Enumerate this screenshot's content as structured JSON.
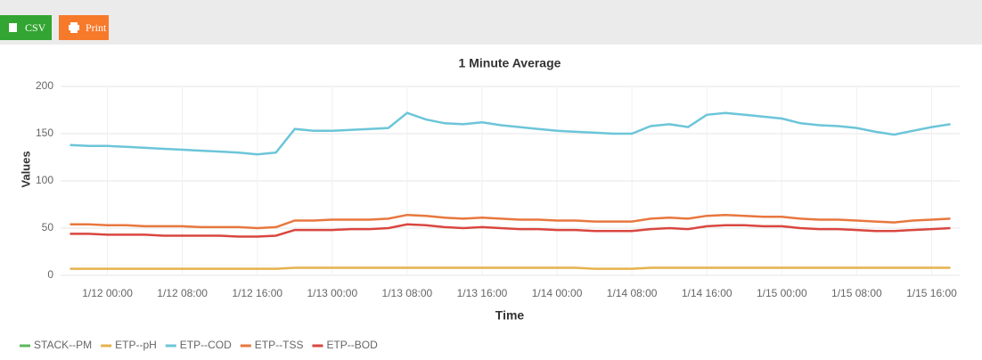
{
  "buttons": {
    "csv": "CSV",
    "print": "Print"
  },
  "chart_data": {
    "type": "line",
    "title": "1 Minute Average",
    "xlabel": "Time",
    "ylabel": "Values",
    "x": [
      "1/11 20:00",
      "1/11 22:00",
      "1/12 00:00",
      "1/12 02:00",
      "1/12 04:00",
      "1/12 06:00",
      "1/12 08:00",
      "1/12 10:00",
      "1/12 12:00",
      "1/12 14:00",
      "1/12 16:00",
      "1/12 18:00",
      "1/12 20:00",
      "1/12 22:00",
      "1/13 00:00",
      "1/13 02:00",
      "1/13 04:00",
      "1/13 06:00",
      "1/13 08:00",
      "1/13 10:00",
      "1/13 12:00",
      "1/13 14:00",
      "1/13 16:00",
      "1/13 18:00",
      "1/13 20:00",
      "1/13 22:00",
      "1/14 00:00",
      "1/14 02:00",
      "1/14 04:00",
      "1/14 06:00",
      "1/14 08:00",
      "1/14 10:00",
      "1/14 12:00",
      "1/14 14:00",
      "1/14 16:00",
      "1/14 18:00",
      "1/14 20:00",
      "1/14 22:00",
      "1/15 00:00",
      "1/15 02:00",
      "1/15 04:00",
      "1/15 06:00",
      "1/15 08:00",
      "1/15 10:00",
      "1/15 12:00",
      "1/15 14:00",
      "1/15 16:00",
      "1/15 18:00"
    ],
    "series": [
      {
        "name": "STACK--PM",
        "color": "#5cb85c",
        "values": [
          null,
          null,
          null,
          null,
          null,
          null,
          null,
          null,
          null,
          null,
          null,
          null,
          null,
          null,
          null,
          null,
          null,
          null,
          null,
          null,
          null,
          null,
          null,
          null,
          null,
          null,
          null,
          null,
          null,
          null,
          null,
          null,
          null,
          null,
          null,
          null,
          null,
          null,
          null,
          null,
          null,
          null,
          null,
          null,
          null,
          null,
          null,
          null
        ]
      },
      {
        "name": "ETP--pH",
        "color": "#e6b24c",
        "values": [
          7,
          7,
          7,
          7,
          7,
          7,
          7,
          7,
          7,
          7,
          7,
          7,
          8,
          8,
          8,
          8,
          8,
          8,
          8,
          8,
          8,
          8,
          8,
          8,
          8,
          8,
          8,
          8,
          7,
          7,
          7,
          8,
          8,
          8,
          8,
          8,
          8,
          8,
          8,
          8,
          8,
          8,
          8,
          8,
          8,
          8,
          8,
          8
        ]
      },
      {
        "name": "ETP--COD",
        "color": "#6cc5d9",
        "values": [
          138,
          137,
          137,
          136,
          135,
          134,
          133,
          132,
          131,
          130,
          128,
          130,
          155,
          153,
          153,
          154,
          155,
          156,
          172,
          165,
          161,
          160,
          162,
          159,
          157,
          155,
          153,
          152,
          151,
          150,
          150,
          158,
          160,
          157,
          170,
          172,
          170,
          168,
          166,
          161,
          159,
          158,
          156,
          152,
          149,
          153,
          157,
          160
        ]
      },
      {
        "name": "ETP--TSS",
        "color": "#e8773e",
        "values": [
          54,
          54,
          53,
          53,
          52,
          52,
          52,
          51,
          51,
          51,
          50,
          51,
          58,
          58,
          59,
          59,
          59,
          60,
          64,
          63,
          61,
          60,
          61,
          60,
          59,
          59,
          58,
          58,
          57,
          57,
          57,
          60,
          61,
          60,
          63,
          64,
          63,
          62,
          62,
          60,
          59,
          59,
          58,
          57,
          56,
          58,
          59,
          60
        ]
      },
      {
        "name": "ETP--BOD",
        "color": "#d9463f",
        "values": [
          44,
          44,
          43,
          43,
          43,
          42,
          42,
          42,
          42,
          41,
          41,
          42,
          48,
          48,
          48,
          49,
          49,
          50,
          54,
          53,
          51,
          50,
          51,
          50,
          49,
          49,
          48,
          48,
          47,
          47,
          47,
          49,
          50,
          49,
          52,
          53,
          53,
          52,
          52,
          50,
          49,
          49,
          48,
          47,
          47,
          48,
          49,
          50
        ]
      }
    ],
    "xlim": [
      "1/11 19:00",
      "1/15 19:00"
    ],
    "xticks": [
      "1/12 00:00",
      "1/12 08:00",
      "1/12 16:00",
      "1/13 00:00",
      "1/13 08:00",
      "1/13 16:00",
      "1/14 00:00",
      "1/14 08:00",
      "1/14 16:00",
      "1/15 00:00",
      "1/15 08:00",
      "1/15 16:00"
    ],
    "ylim": [
      0,
      200
    ],
    "yticks": [
      0,
      50,
      100,
      150,
      200
    ],
    "grid": true,
    "legend": "bottom-left"
  }
}
